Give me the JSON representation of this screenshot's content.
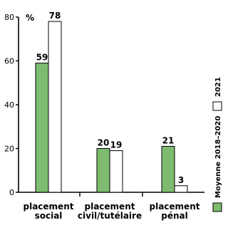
{
  "chart_data": {
    "type": "bar",
    "unit_label": "%",
    "categories": [
      [
        "placement",
        "social"
      ],
      [
        "placement",
        "civil/tutélaire"
      ],
      [
        "placement",
        "pénal"
      ]
    ],
    "series": [
      {
        "name": "Moyenne 2018–2020",
        "values": [
          59,
          20,
          21
        ],
        "color": "#7dbb6e"
      },
      {
        "name": "2021",
        "values": [
          78,
          19,
          3
        ],
        "color": "#ffffff"
      }
    ],
    "ylim": [
      0,
      80
    ],
    "yticks": [
      0,
      20,
      40,
      60,
      80
    ],
    "grid": false,
    "legend_position": "right, rotated vertical"
  }
}
